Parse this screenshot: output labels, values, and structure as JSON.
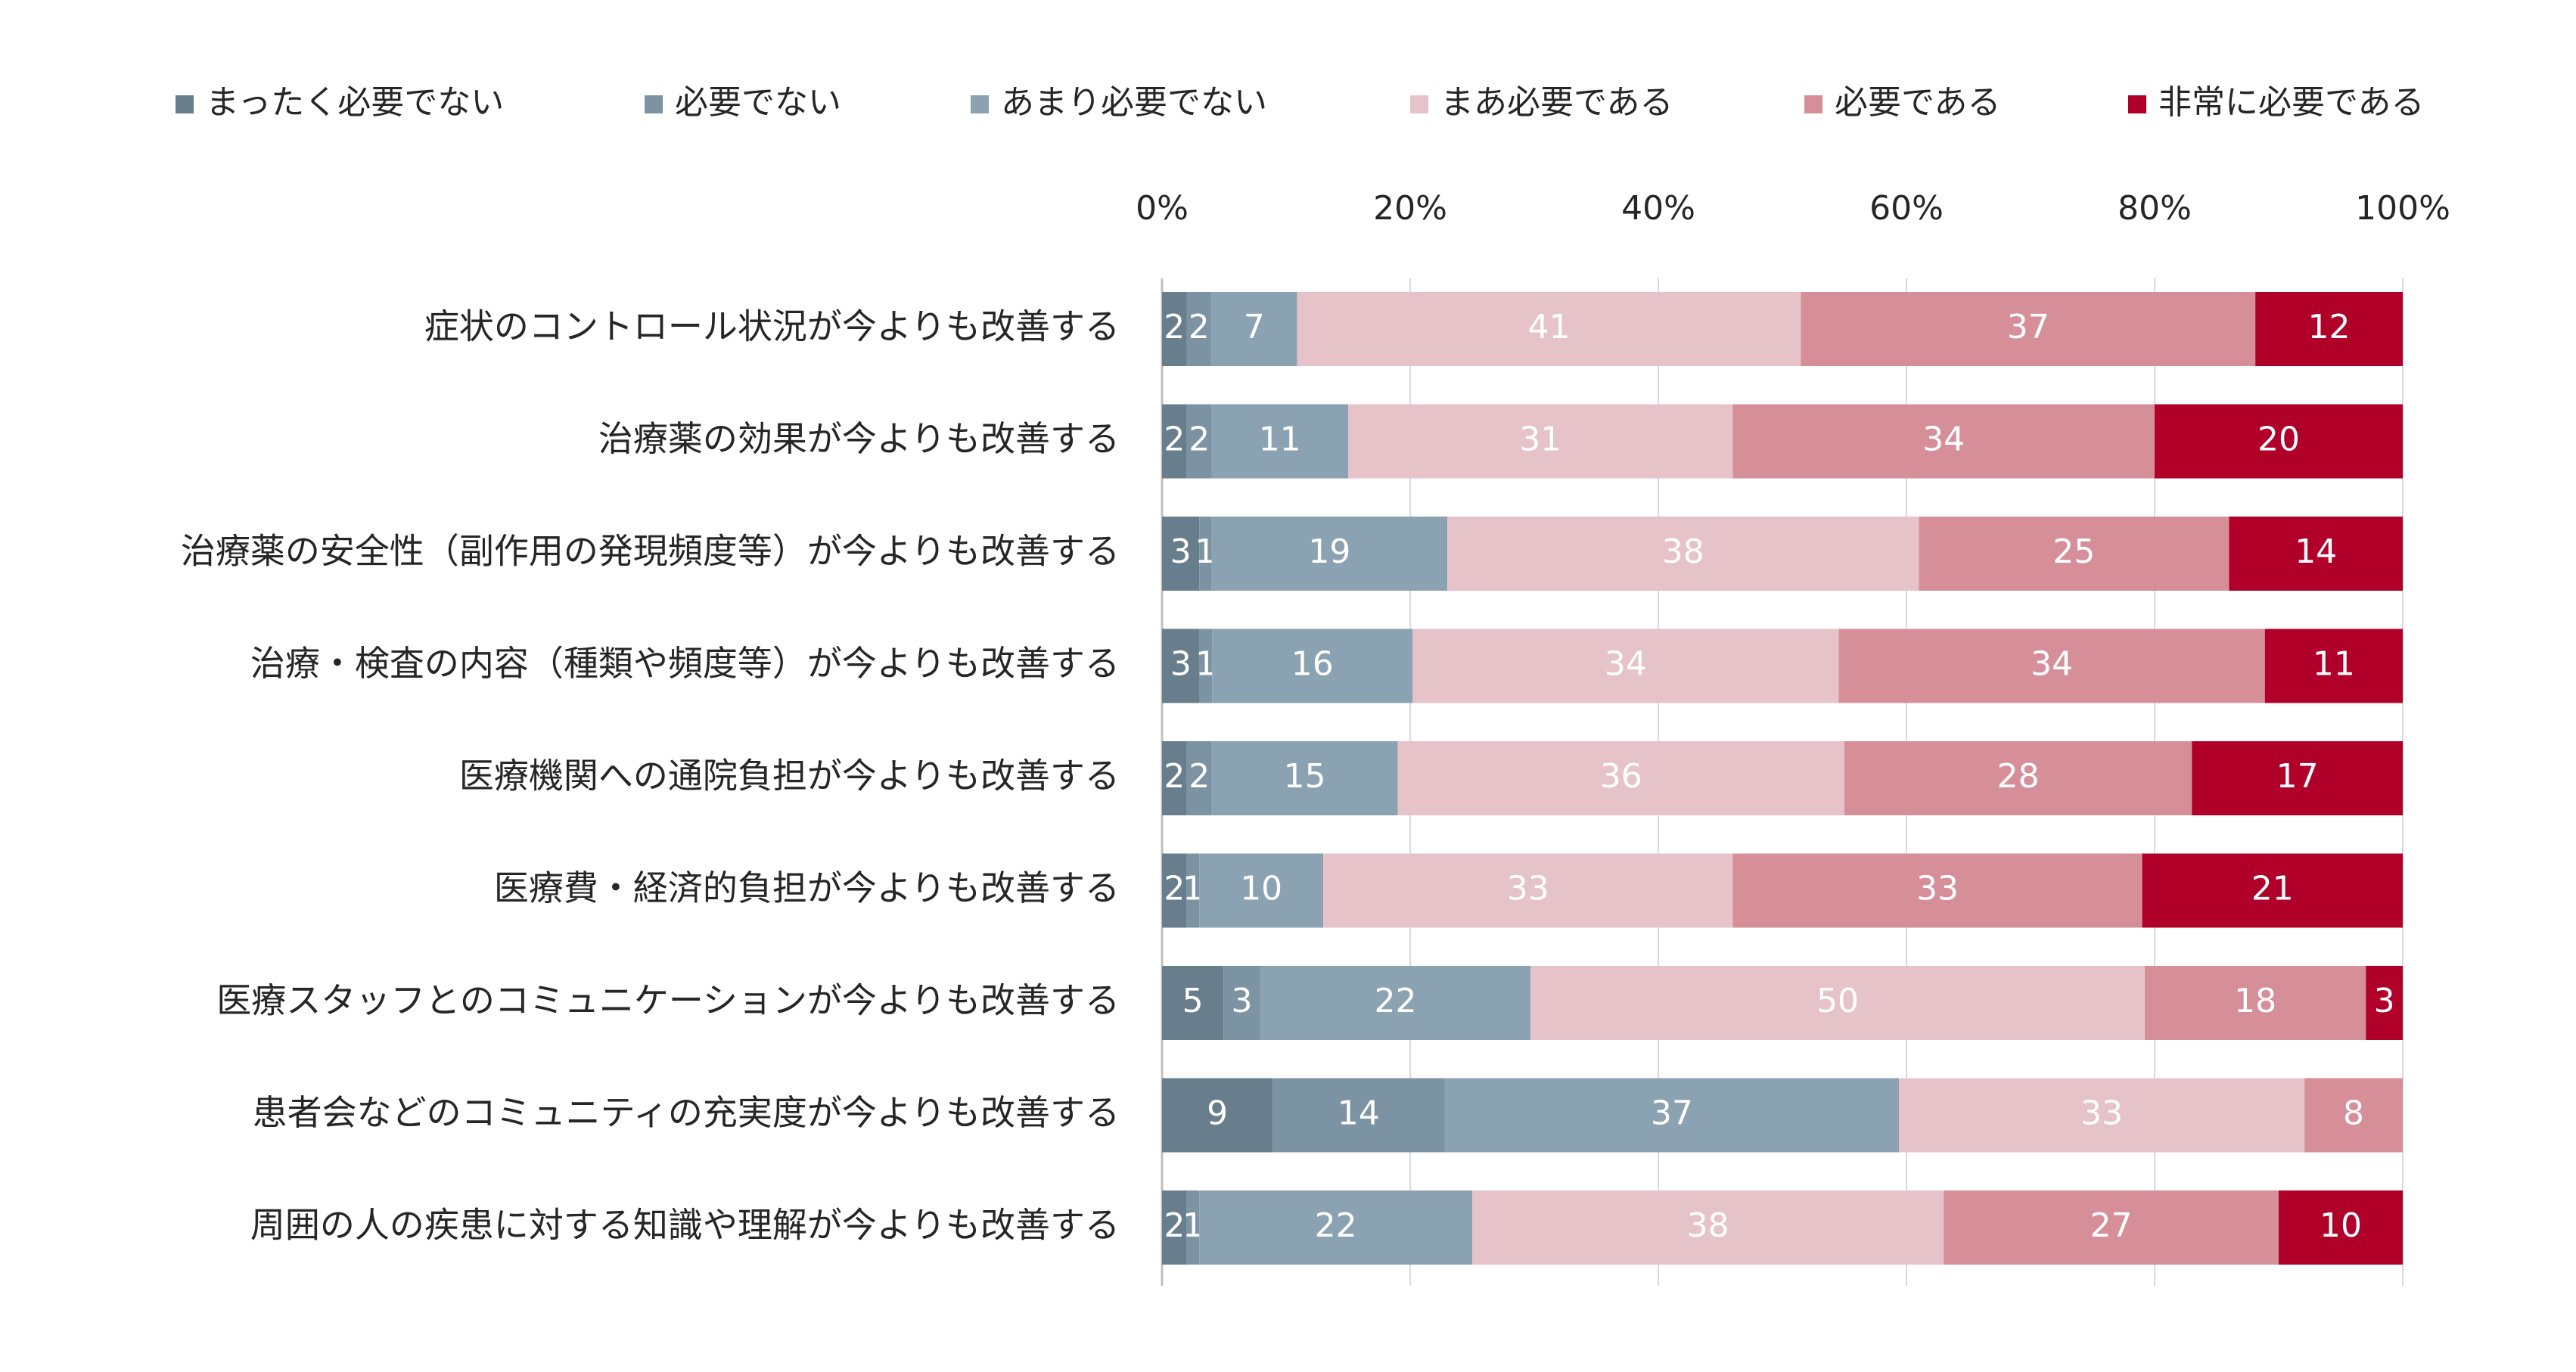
{
  "chart_data": {
    "type": "bar",
    "orientation": "horizontal",
    "stacked": true,
    "percent_stacked": true,
    "legend_position": "top",
    "grid": true,
    "xlim": [
      0,
      100
    ],
    "x_ticks": [
      "0%",
      "20%",
      "40%",
      "60%",
      "80%",
      "100%"
    ],
    "categories": [
      "症状のコントロール状況が今よりも改善する",
      "治療薬の効果が今よりも改善する",
      "治療薬の安全性（副作用の発現頻度等）が今よりも改善する",
      "治療・検査の内容（種類や頻度等）が今よりも改善する",
      "医療機関への通院負担が今よりも改善する",
      "医療費・経済的負担が今よりも改善する",
      "医療スタッフとのコミュニケーションが今よりも改善する",
      "患者会などのコミュニティの充実度が今よりも改善する",
      "周囲の人の疾患に対する知識や理解が今よりも改善する"
    ],
    "series": [
      {
        "name": "まったく必要でない",
        "color": "#697e8c",
        "values": [
          2,
          2,
          3,
          3,
          2,
          2,
          5,
          9,
          2
        ]
      },
      {
        "name": "必要でない",
        "color": "#7b93a2",
        "values": [
          2,
          2,
          1,
          1,
          2,
          1,
          3,
          14,
          1
        ]
      },
      {
        "name": "あまり必要でない",
        "color": "#8aa2b2",
        "values": [
          7,
          11,
          19,
          16,
          15,
          10,
          22,
          37,
          22
        ]
      },
      {
        "name": "まあ必要である",
        "color": "#e6c3c8",
        "values": [
          41,
          31,
          38,
          34,
          36,
          33,
          50,
          33,
          38
        ]
      },
      {
        "name": "必要である",
        "color": "#d68f99",
        "values": [
          37,
          34,
          25,
          34,
          28,
          33,
          18,
          8,
          27
        ]
      },
      {
        "name": "非常に必要である",
        "color": "#b0002a",
        "values": [
          12,
          20,
          14,
          11,
          17,
          21,
          3,
          0,
          10
        ]
      }
    ]
  }
}
